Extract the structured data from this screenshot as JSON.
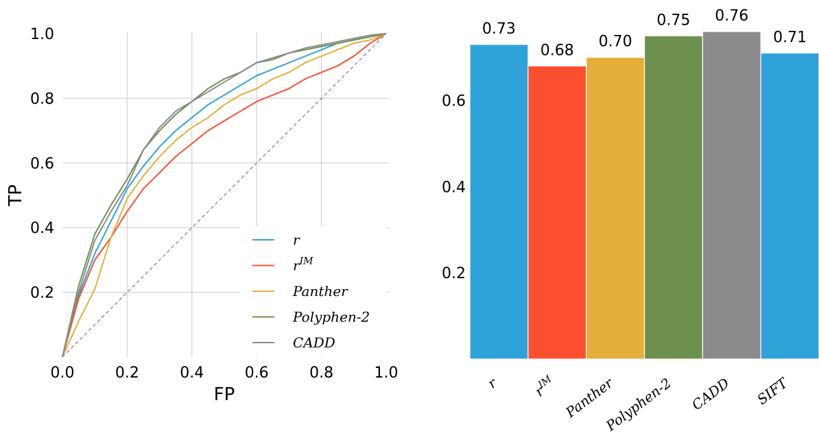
{
  "chart_data": [
    {
      "type": "line",
      "xlabel": "FP",
      "ylabel": "TP",
      "xlim": [
        0.0,
        1.0
      ],
      "ylim": [
        0.0,
        1.0
      ],
      "xticks": [
        "0.0",
        "0.2",
        "0.4",
        "0.6",
        "0.8",
        "1.0"
      ],
      "yticks": [
        "0.2",
        "0.4",
        "0.6",
        "0.8",
        "1.0"
      ],
      "grid": true,
      "legend_position": "lower-right",
      "series": [
        {
          "name": "r",
          "color": "#30a2da",
          "x": [
            0.0,
            0.05,
            0.1,
            0.15,
            0.2,
            0.25,
            0.3,
            0.35,
            0.4,
            0.45,
            0.5,
            0.55,
            0.6,
            0.65,
            0.7,
            0.75,
            0.8,
            0.85,
            0.9,
            0.95,
            1.0
          ],
          "y": [
            0.0,
            0.19,
            0.32,
            0.42,
            0.52,
            0.59,
            0.65,
            0.7,
            0.74,
            0.78,
            0.81,
            0.84,
            0.87,
            0.89,
            0.91,
            0.93,
            0.95,
            0.97,
            0.98,
            0.99,
            1.0
          ]
        },
        {
          "name": "r^IM",
          "color": "#fc4f30",
          "x": [
            0.0,
            0.05,
            0.1,
            0.15,
            0.2,
            0.25,
            0.3,
            0.35,
            0.4,
            0.45,
            0.5,
            0.55,
            0.6,
            0.65,
            0.7,
            0.75,
            0.8,
            0.85,
            0.9,
            0.95,
            1.0
          ],
          "y": [
            0.0,
            0.18,
            0.3,
            0.37,
            0.45,
            0.52,
            0.57,
            0.62,
            0.66,
            0.7,
            0.73,
            0.76,
            0.79,
            0.81,
            0.83,
            0.86,
            0.88,
            0.9,
            0.93,
            0.97,
            1.0
          ]
        },
        {
          "name": "Panther",
          "color": "#e5ae38",
          "x": [
            0.0,
            0.05,
            0.1,
            0.15,
            0.2,
            0.25,
            0.3,
            0.35,
            0.4,
            0.45,
            0.5,
            0.55,
            0.6,
            0.65,
            0.7,
            0.75,
            0.8,
            0.85,
            0.9,
            0.95,
            1.0
          ],
          "y": [
            0.0,
            0.11,
            0.21,
            0.37,
            0.49,
            0.56,
            0.62,
            0.67,
            0.71,
            0.74,
            0.78,
            0.81,
            0.83,
            0.86,
            0.88,
            0.91,
            0.93,
            0.95,
            0.97,
            0.98,
            1.0
          ]
        },
        {
          "name": "Polyphen-2",
          "color": "#6d904f",
          "x": [
            0.0,
            0.05,
            0.1,
            0.15,
            0.2,
            0.25,
            0.3,
            0.35,
            0.4,
            0.45,
            0.5,
            0.55,
            0.6,
            0.65,
            0.7,
            0.75,
            0.8,
            0.85,
            0.9,
            0.95,
            1.0
          ],
          "y": [
            0.0,
            0.22,
            0.38,
            0.47,
            0.55,
            0.64,
            0.7,
            0.75,
            0.79,
            0.83,
            0.86,
            0.88,
            0.91,
            0.92,
            0.94,
            0.95,
            0.96,
            0.97,
            0.98,
            0.99,
            1.0
          ]
        },
        {
          "name": "CADD",
          "color": "#8b8b8b",
          "x": [
            0.0,
            0.05,
            0.1,
            0.15,
            0.2,
            0.25,
            0.3,
            0.35,
            0.4,
            0.45,
            0.5,
            0.55,
            0.6,
            0.65,
            0.7,
            0.75,
            0.8,
            0.85,
            0.9,
            0.95,
            1.0
          ],
          "y": [
            0.0,
            0.2,
            0.36,
            0.45,
            0.53,
            0.64,
            0.71,
            0.76,
            0.79,
            0.82,
            0.85,
            0.88,
            0.91,
            0.925,
            0.94,
            0.955,
            0.965,
            0.975,
            0.985,
            0.995,
            1.0
          ]
        }
      ],
      "diagonal": {
        "color": "#777777",
        "style": "dashed"
      }
    },
    {
      "type": "bar",
      "categories": [
        "r",
        "r^IM",
        "Panther",
        "Polyphen-2",
        "CADD",
        "SIFT"
      ],
      "values": [
        0.73,
        0.68,
        0.7,
        0.75,
        0.76,
        0.71
      ],
      "value_labels": [
        "0.73",
        "0.68",
        "0.70",
        "0.75",
        "0.76",
        "0.71"
      ],
      "colors": [
        "#30a2da",
        "#fc4f30",
        "#e5ae38",
        "#6d904f",
        "#8b8b8b",
        "#30a2da"
      ],
      "ylim": [
        0.0,
        0.76
      ],
      "yticks": [
        "0.2",
        "0.4",
        "0.6"
      ]
    }
  ]
}
